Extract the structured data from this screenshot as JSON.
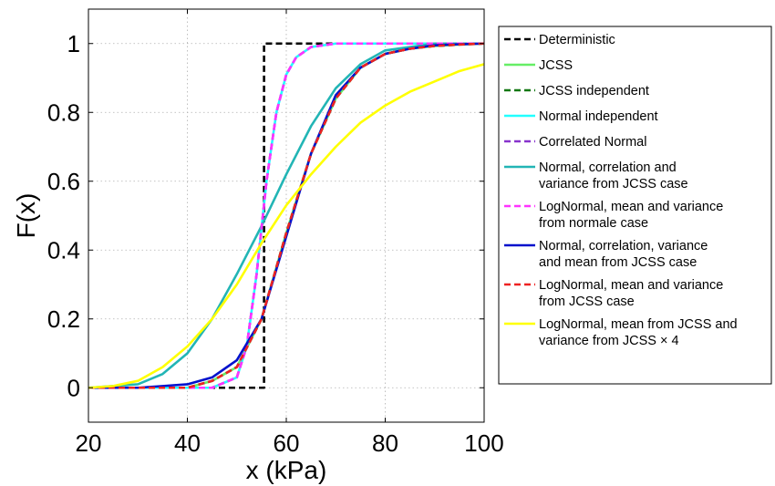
{
  "chart_data": {
    "type": "line",
    "xlabel": "x (kPa)",
    "ylabel": "F(x)",
    "xlim": [
      20,
      100
    ],
    "ylim": [
      -0.1,
      1.1
    ],
    "xticks": [
      "20",
      "40",
      "60",
      "80",
      "100"
    ],
    "yticks": [
      "0",
      "0.2",
      "0.4",
      "0.6",
      "0.8",
      "1"
    ],
    "grid": true,
    "legend_position": "outside-right",
    "series": [
      {
        "name": "Deterministic",
        "color": "#000000",
        "dash": true,
        "x": [
          20,
          55.5,
          55.5,
          100
        ],
        "y": [
          0,
          0,
          1,
          1
        ]
      },
      {
        "name": "JCSS",
        "color": "#66ee66",
        "dash": false,
        "x": [
          20,
          40,
          45,
          50,
          55,
          60,
          65,
          70,
          75,
          80,
          85,
          90,
          95,
          100
        ],
        "y": [
          0,
          0,
          0.02,
          0.06,
          0.2,
          0.45,
          0.68,
          0.84,
          0.93,
          0.97,
          0.985,
          0.993,
          0.997,
          1.0
        ]
      },
      {
        "name": "JCSS independent",
        "color": "#117711",
        "dash": true,
        "x": [
          20,
          40,
          45,
          50,
          55,
          60,
          65,
          70,
          75,
          80,
          85,
          90,
          95,
          100
        ],
        "y": [
          0,
          0,
          0.02,
          0.06,
          0.2,
          0.45,
          0.68,
          0.84,
          0.93,
          0.97,
          0.985,
          0.993,
          0.997,
          1.0
        ]
      },
      {
        "name": "Normal independent",
        "color": "#22ffff",
        "dash": false,
        "x": [
          20,
          45,
          50,
          52,
          54,
          56,
          58,
          60,
          62,
          65,
          70,
          100
        ],
        "y": [
          0,
          0,
          0.03,
          0.12,
          0.33,
          0.6,
          0.8,
          0.91,
          0.96,
          0.99,
          1.0,
          1.0
        ]
      },
      {
        "name": "Correlated Normal",
        "color": "#8833cc",
        "dash": true,
        "x": [
          20,
          45,
          50,
          52,
          54,
          56,
          58,
          60,
          62,
          65,
          70,
          100
        ],
        "y": [
          0,
          0,
          0.03,
          0.12,
          0.33,
          0.6,
          0.8,
          0.91,
          0.96,
          0.99,
          1.0,
          1.0
        ]
      },
      {
        "name": "Normal, correlation and variance from JCSS case",
        "color": "#22b5b5",
        "dash": false,
        "x": [
          20,
          30,
          35,
          40,
          45,
          50,
          55,
          60,
          65,
          70,
          75,
          80,
          85,
          90,
          100
        ],
        "y": [
          0,
          0.01,
          0.04,
          0.1,
          0.2,
          0.33,
          0.47,
          0.62,
          0.76,
          0.87,
          0.94,
          0.98,
          0.99,
          1.0,
          1.0
        ]
      },
      {
        "name": "LogNormal, mean and variance from normale case",
        "color": "#ff33ff",
        "dash": true,
        "x": [
          20,
          45,
          50,
          52,
          54,
          56,
          58,
          60,
          62,
          65,
          70,
          100
        ],
        "y": [
          0,
          0,
          0.03,
          0.12,
          0.33,
          0.6,
          0.8,
          0.91,
          0.96,
          0.99,
          1.0,
          1.0
        ]
      },
      {
        "name": "Normal, correlation, variance and mean from JCSS case",
        "color": "#0011cc",
        "dash": false,
        "x": [
          20,
          30,
          35,
          40,
          45,
          50,
          55,
          60,
          65,
          70,
          75,
          80,
          85,
          90,
          95,
          100
        ],
        "y": [
          0,
          0,
          0.005,
          0.01,
          0.03,
          0.08,
          0.2,
          0.44,
          0.68,
          0.85,
          0.93,
          0.97,
          0.985,
          0.995,
          0.998,
          1.0
        ]
      },
      {
        "name": "LogNormal, mean and variance from JCSS case",
        "color": "#ee2222",
        "dash": true,
        "x": [
          20,
          40,
          45,
          50,
          55,
          60,
          65,
          70,
          75,
          80,
          85,
          90,
          95,
          100
        ],
        "y": [
          0,
          0,
          0.02,
          0.06,
          0.2,
          0.45,
          0.68,
          0.84,
          0.93,
          0.97,
          0.985,
          0.993,
          0.997,
          1.0
        ]
      },
      {
        "name": "LogNormal, mean from JCSS and variance from JCSS × 4",
        "color": "#ffff00",
        "dash": false,
        "x": [
          20,
          25,
          30,
          35,
          40,
          45,
          50,
          55,
          60,
          65,
          70,
          75,
          80,
          85,
          90,
          95,
          100
        ],
        "y": [
          0,
          0.005,
          0.02,
          0.06,
          0.12,
          0.2,
          0.3,
          0.42,
          0.53,
          0.62,
          0.7,
          0.77,
          0.82,
          0.86,
          0.89,
          0.92,
          0.94
        ]
      }
    ]
  }
}
